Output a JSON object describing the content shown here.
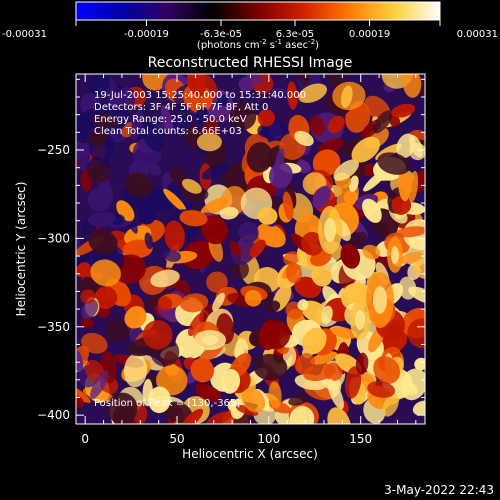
{
  "colorbar": {
    "tick_labels": [
      "-0.00031",
      "-0.00019",
      "-6.3e-05",
      "6.3e-05",
      "0.00019",
      "0.00031"
    ],
    "tick_values": [
      -0.00031,
      -0.00019,
      -6.3e-05,
      6.3e-05,
      0.00019,
      0.00031
    ],
    "range": [
      -0.00031,
      0.00031
    ],
    "units_main": "(photons cm",
    "units_exp1": "-2",
    "units_mid": " s",
    "units_exp2": "-1",
    "units_end": " asec",
    "units_exp3": "-2",
    "units_close": ")",
    "colors": [
      "#0000ff",
      "#0000aa",
      "#300060",
      "#000000",
      "#7a0000",
      "#d42000",
      "#ff7a00",
      "#ffd23c",
      "#ffffff"
    ]
  },
  "image": {
    "title": "Reconstructed RHESSI Image",
    "annotations": [
      "19-Jul-2003 15:25:40.000 to 15:31:40.000",
      "Detectors: 3F 4F 5F 6F 7F 8F, Att 0",
      "Energy Range: 25.0 - 50.0 keV",
      "Clean     Total counts: 6.66E+03"
    ],
    "peak_label": "Position of Peak = [130,-365]",
    "xlabel": "Heliocentric X (arcsec)",
    "ylabel": "Heliocentric Y (arcsec)",
    "x_range": [
      -5,
      185
    ],
    "y_range": [
      -405,
      -207
    ],
    "x_ticks": [
      0,
      50,
      100,
      150
    ],
    "y_ticks": [
      -400,
      -350,
      -300,
      -250
    ],
    "x_tick_labels": [
      "0",
      "50",
      "100",
      "150"
    ],
    "y_tick_labels": [
      "−400",
      "−350",
      "−300",
      "−250"
    ],
    "palette": [
      "#1a0a60",
      "#3a1470",
      "#5a2080",
      "#3d0d20",
      "#8a0000",
      "#c01800",
      "#e84a00",
      "#ff8c10",
      "#ffc040",
      "#ffe890"
    ]
  },
  "footer": {
    "timestamp": "3-May-2022 22:43"
  }
}
